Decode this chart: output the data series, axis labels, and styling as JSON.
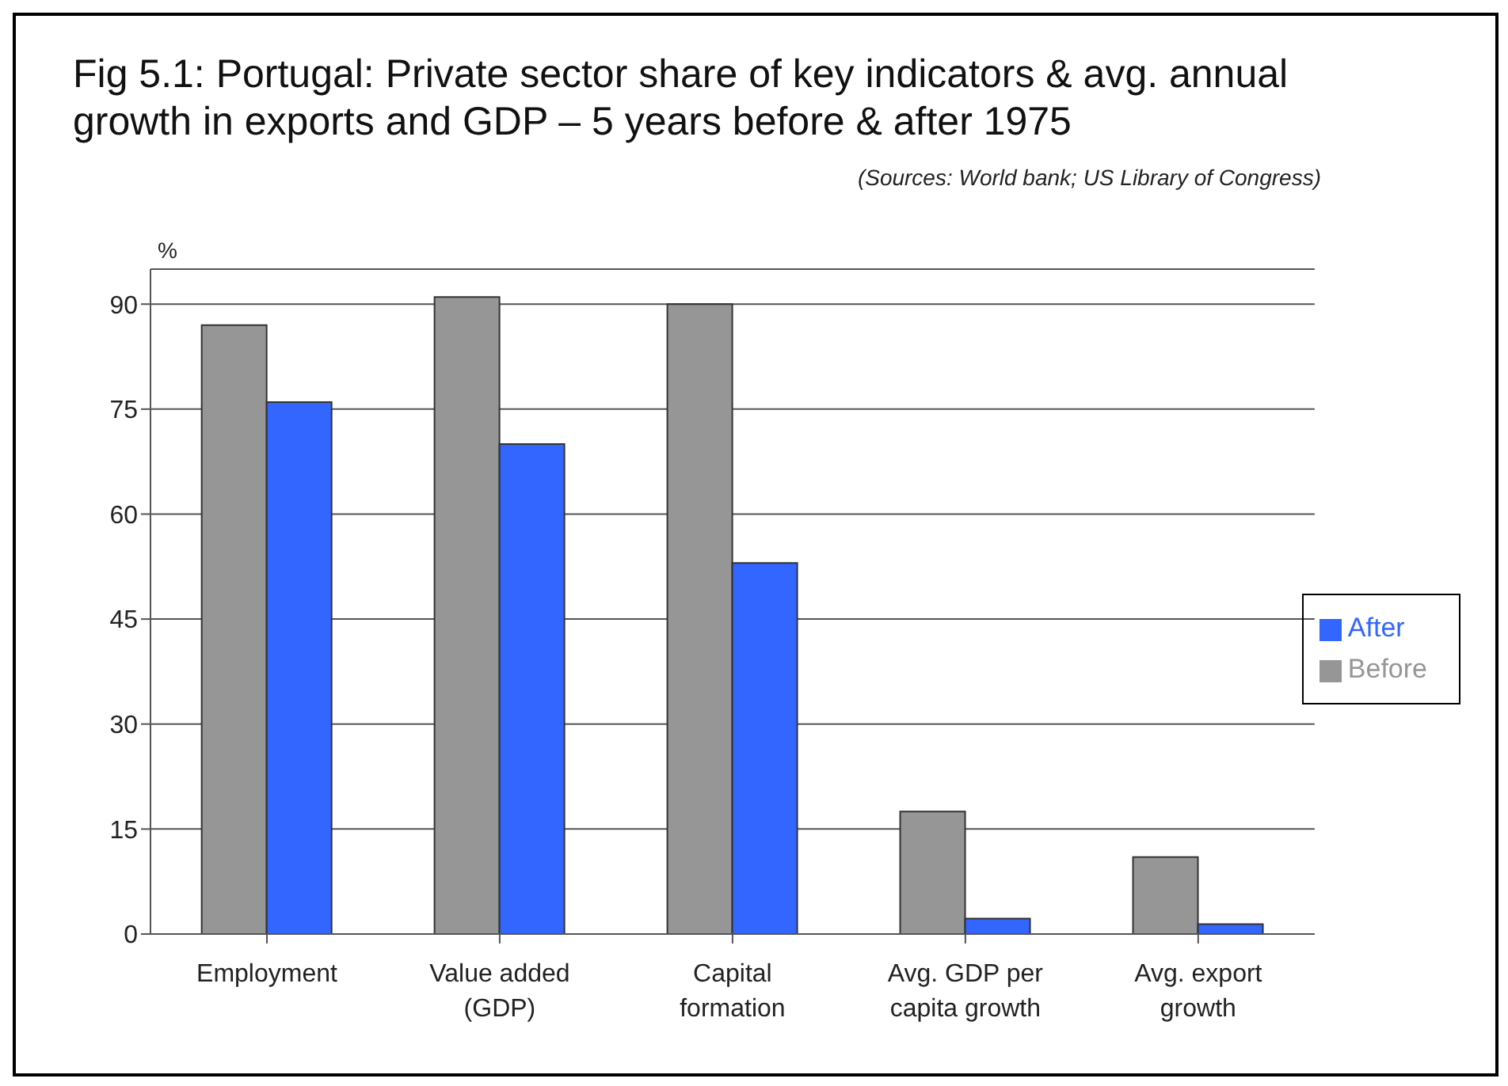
{
  "chart_data": {
    "type": "bar",
    "title": "Fig 5.1: Portugal: Private sector share of key indicators & avg. annual growth in exports and GDP – 5 years before & after 1975",
    "annotations": [
      "(Sources: World bank; US Library of Congress)"
    ],
    "ylabel": "%",
    "categories": [
      "Employment",
      "Value added (GDP)",
      "Capital formation",
      "Avg. GDP per capita growth",
      "Avg. export growth"
    ],
    "series": [
      {
        "name": "Before",
        "color": "#969696",
        "values": [
          87,
          91,
          90,
          17.5,
          11
        ]
      },
      {
        "name": "After",
        "color": "#3366ff",
        "values": [
          76,
          70,
          53,
          2.2,
          1.4
        ]
      }
    ],
    "ylim": [
      0,
      95
    ],
    "yticks": [
      0,
      15,
      30,
      45,
      60,
      75,
      90
    ],
    "grid": "y",
    "legend": "right"
  }
}
